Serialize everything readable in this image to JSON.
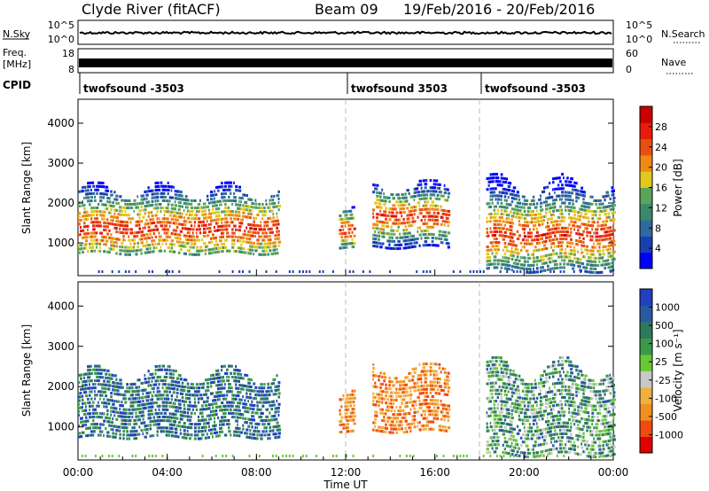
{
  "header": {
    "station": "Clyde River (fitACF)",
    "beam": "Beam 09",
    "date_range": "19/Feb/2016 - 20/Feb/2016"
  },
  "strip": {
    "nsky_label": "N.Sky",
    "nsky_ticks": [
      "10^5",
      "10^0"
    ],
    "nsearch_label": "N.Search",
    "nsearch_ticks": [
      "10^5",
      "10^0"
    ],
    "freq_label_1": "Freq.",
    "freq_label_2": "[MHz]",
    "freq_ticks": [
      "18",
      "8"
    ],
    "nave_label": "Nave",
    "nave_ticks": [
      "60",
      "0"
    ],
    "cpid_label": "CPID",
    "cpid_segments": [
      {
        "label": "twofsound -3503",
        "start_hour": 0
      },
      {
        "label": "twofsound 3503",
        "start_hour": 12
      },
      {
        "label": "twofsound -3503",
        "start_hour": 18
      }
    ]
  },
  "chart_data": [
    {
      "type": "heatmap",
      "panel": "power",
      "ylabel": "Slant Range [km]",
      "y_ticks": [
        "1000",
        "2000",
        "3000",
        "4000"
      ],
      "y_tick_values": [
        1000,
        2000,
        3000,
        4000
      ],
      "ylim": [
        180,
        4600
      ],
      "xlim_hours": [
        0,
        24
      ],
      "colorbar_label": "Power [dB]",
      "colorbar_ticks": [
        "28",
        "24",
        "20",
        "16",
        "12",
        "8",
        "4"
      ],
      "colorbar_colors": [
        "#0000ff",
        "#1a3fb0",
        "#2f6a9e",
        "#3a8a6a",
        "#5aa35a",
        "#e0c81e",
        "#f08a14",
        "#e85012",
        "#e81c0c",
        "#c80000"
      ],
      "echo_regions": [
        {
          "t0": 0.0,
          "t1": 9.0,
          "r0": 650,
          "r1": 2500,
          "core_r0": 900,
          "core_r1": 1700
        },
        {
          "t0": 11.7,
          "t1": 12.4,
          "r0": 800,
          "r1": 1900,
          "core_r0": 1000,
          "core_r1": 1500
        },
        {
          "t0": 13.2,
          "t1": 16.6,
          "r0": 800,
          "r1": 2600,
          "core_r0": 1300,
          "core_r1": 1900
        },
        {
          "t0": 18.3,
          "t1": 24.0,
          "r0": 200,
          "r1": 2700,
          "core_r0": 700,
          "core_r1": 1600
        }
      ]
    },
    {
      "type": "heatmap",
      "panel": "velocity",
      "ylabel": "Slant Range [km]",
      "y_ticks": [
        "1000",
        "2000",
        "3000",
        "4000"
      ],
      "y_tick_values": [
        1000,
        2000,
        3000,
        4000
      ],
      "ylim": [
        180,
        4600
      ],
      "x_ticks": [
        "00:00",
        "04:00",
        "08:00",
        "12:00",
        "16:00",
        "20:00",
        "00:00"
      ],
      "x_tick_hours": [
        0,
        4,
        8,
        12,
        16,
        20,
        24
      ],
      "xlabel": "Time UT",
      "colorbar_label": "Velocity [m s⁻¹]",
      "colorbar_ticks": [
        "1000",
        "500",
        "100",
        "25",
        "-25",
        "-100",
        "-500",
        "-1000"
      ],
      "colorbar_colors": [
        "#e00000",
        "#f04a10",
        "#f09020",
        "#f0b040",
        "#c8c8c8",
        "#6ac838",
        "#3a9a4a",
        "#2e7a5a",
        "#2a5aa0",
        "#2040c0"
      ],
      "echo_regions": [
        {
          "t0": 0.0,
          "t1": 9.0,
          "r0": 650,
          "r1": 2500,
          "tone": "toward"
        },
        {
          "t0": 11.7,
          "t1": 12.4,
          "r0": 800,
          "r1": 1900,
          "tone": "away"
        },
        {
          "t0": 13.2,
          "t1": 16.6,
          "r0": 800,
          "r1": 2600,
          "tone": "away"
        },
        {
          "t0": 18.3,
          "t1": 24.0,
          "r0": 200,
          "r1": 2700,
          "tone": "mixed"
        }
      ]
    }
  ]
}
